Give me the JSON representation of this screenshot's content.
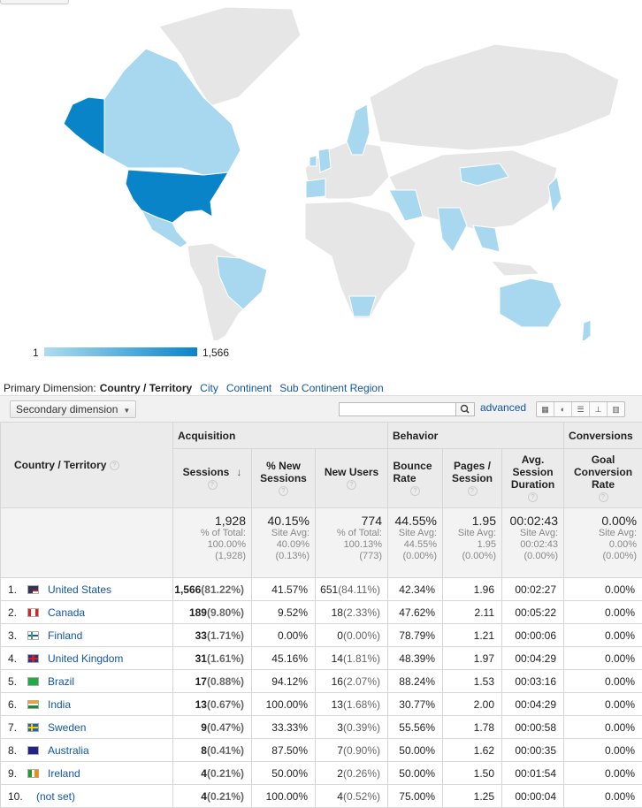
{
  "legend": {
    "min": "1",
    "max": "1,566"
  },
  "colors": {
    "max": "#0a84c8",
    "mid": "#a8d8ef",
    "low": "#d7eef9",
    "none": "#e6e6e6",
    "link": "#1155aa"
  },
  "primary": {
    "label": "Primary Dimension:",
    "current": "Country / Territory",
    "options": [
      "City",
      "Continent",
      "Sub Continent Region"
    ]
  },
  "toolbar": {
    "secondary": "Secondary dimension",
    "advanced": "advanced",
    "search_value": ""
  },
  "groups": {
    "acquisition": "Acquisition",
    "behavior": "Behavior",
    "conversions": "Conversions"
  },
  "columns": {
    "country": "Country / Territory",
    "sessions": "Sessions",
    "new_sessions": "% New Sessions",
    "new_users": "New Users",
    "bounce": "Bounce Rate",
    "pages": "Pages / Session",
    "duration": "Avg. Session Duration",
    "goal": "Goal Conversion Rate"
  },
  "totals": {
    "sessions": {
      "big": "1,928",
      "l1": "% of Total:",
      "l2": "100.00%",
      "l3": "(1,928)"
    },
    "new_sessions": {
      "big": "40.15%",
      "l1": "Site Avg:",
      "l2": "40.09%",
      "l3": "(0.13%)"
    },
    "new_users": {
      "big": "774",
      "l1": "% of Total:",
      "l2": "100.13%",
      "l3": "(773)"
    },
    "bounce": {
      "big": "44.55%",
      "l1": "Site Avg:",
      "l2": "44.55%",
      "l3": "(0.00%)"
    },
    "pages": {
      "big": "1.95",
      "l1": "Site Avg:",
      "l2": "1.95",
      "l3": "(0.00%)"
    },
    "duration": {
      "big": "00:02:43",
      "l1": "Site Avg:",
      "l2": "00:02:43",
      "l3": "(0.00%)"
    },
    "goal": {
      "big": "0.00%",
      "l1": "Site Avg:",
      "l2": "0.00%",
      "l3": "(0.00%)"
    }
  },
  "rows": [
    {
      "n": "1.",
      "country": "United States",
      "flag": "us",
      "sessions": "1,566",
      "s_pct": "(81.22%)",
      "new_sessions": "41.57%",
      "new_users": "651",
      "u_pct": "(84.11%)",
      "bounce": "42.34%",
      "pages": "1.96",
      "duration": "00:02:27",
      "goal": "0.00%"
    },
    {
      "n": "2.",
      "country": "Canada",
      "flag": "ca",
      "sessions": "189",
      "s_pct": "(9.80%)",
      "new_sessions": "9.52%",
      "new_users": "18",
      "u_pct": "(2.33%)",
      "bounce": "47.62%",
      "pages": "2.11",
      "duration": "00:05:22",
      "goal": "0.00%"
    },
    {
      "n": "3.",
      "country": "Finland",
      "flag": "fi",
      "sessions": "33",
      "s_pct": "(1.71%)",
      "new_sessions": "0.00%",
      "new_users": "0",
      "u_pct": "(0.00%)",
      "bounce": "78.79%",
      "pages": "1.21",
      "duration": "00:00:06",
      "goal": "0.00%"
    },
    {
      "n": "4.",
      "country": "United Kingdom",
      "flag": "gb",
      "sessions": "31",
      "s_pct": "(1.61%)",
      "new_sessions": "45.16%",
      "new_users": "14",
      "u_pct": "(1.81%)",
      "bounce": "48.39%",
      "pages": "1.97",
      "duration": "00:04:29",
      "goal": "0.00%"
    },
    {
      "n": "5.",
      "country": "Brazil",
      "flag": "br",
      "sessions": "17",
      "s_pct": "(0.88%)",
      "new_sessions": "94.12%",
      "new_users": "16",
      "u_pct": "(2.07%)",
      "bounce": "88.24%",
      "pages": "1.53",
      "duration": "00:03:16",
      "goal": "0.00%"
    },
    {
      "n": "6.",
      "country": "India",
      "flag": "in",
      "sessions": "13",
      "s_pct": "(0.67%)",
      "new_sessions": "100.00%",
      "new_users": "13",
      "u_pct": "(1.68%)",
      "bounce": "30.77%",
      "pages": "2.00",
      "duration": "00:04:29",
      "goal": "0.00%"
    },
    {
      "n": "7.",
      "country": "Sweden",
      "flag": "se",
      "sessions": "9",
      "s_pct": "(0.47%)",
      "new_sessions": "33.33%",
      "new_users": "3",
      "u_pct": "(0.39%)",
      "bounce": "55.56%",
      "pages": "1.78",
      "duration": "00:00:58",
      "goal": "0.00%"
    },
    {
      "n": "8.",
      "country": "Australia",
      "flag": "au",
      "sessions": "8",
      "s_pct": "(0.41%)",
      "new_sessions": "87.50%",
      "new_users": "7",
      "u_pct": "(0.90%)",
      "bounce": "50.00%",
      "pages": "1.62",
      "duration": "00:00:35",
      "goal": "0.00%"
    },
    {
      "n": "9.",
      "country": "Ireland",
      "flag": "ie",
      "sessions": "4",
      "s_pct": "(0.21%)",
      "new_sessions": "50.00%",
      "new_users": "2",
      "u_pct": "(0.26%)",
      "bounce": "50.00%",
      "pages": "1.50",
      "duration": "00:01:54",
      "goal": "0.00%"
    },
    {
      "n": "10.",
      "country": "(not set)",
      "flag": "",
      "sessions": "4",
      "s_pct": "(0.21%)",
      "new_sessions": "100.00%",
      "new_users": "4",
      "u_pct": "(0.52%)",
      "bounce": "75.00%",
      "pages": "1.25",
      "duration": "00:00:04",
      "goal": "0.00%"
    }
  ]
}
